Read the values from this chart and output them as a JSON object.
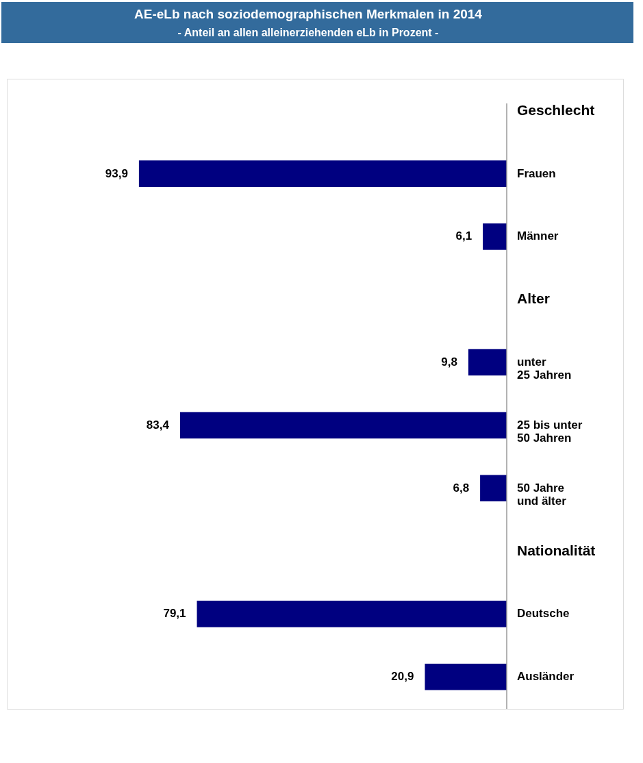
{
  "chart_data": {
    "type": "bar",
    "orientation": "horizontal",
    "title": "AE-eLb nach soziodemographischen Merkmalen in 2014",
    "subtitle": "- Anteil an allen alleinerziehenden eLb in Prozent -",
    "categories": [
      "Geschlecht",
      "Frauen",
      "Männer",
      "Alter",
      "unter\n25 Jahren",
      "25 bis unter\n50 Jahren",
      "50 Jahre\nund älter",
      "Nationalität",
      "Deutsche",
      "Ausländer"
    ],
    "values": [
      null,
      93.9,
      6.1,
      null,
      9.8,
      83.4,
      6.8,
      null,
      79.1,
      20.9
    ],
    "value_labels": [
      null,
      "93,9",
      "6,1",
      null,
      "9,8",
      "83,4",
      "6,8",
      null,
      "79,1",
      "20,9"
    ],
    "color": "#000080"
  }
}
